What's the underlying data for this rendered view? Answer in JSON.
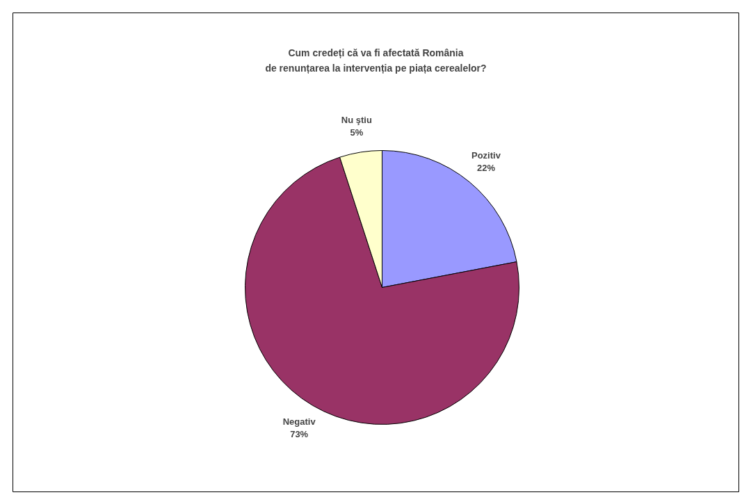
{
  "chart_data": {
    "type": "pie",
    "title": "Cum credeți că va fi afectată România\nde renunțarea la intervenția pe piața cerealelor?",
    "categories": [
      "Pozitiv",
      "Negativ",
      "Nu ştiu"
    ],
    "values": [
      22,
      73,
      5
    ],
    "colors": [
      "#9999ff",
      "#993366",
      "#ffffcc"
    ],
    "value_labels": [
      "22%",
      "73%",
      "5%"
    ]
  }
}
